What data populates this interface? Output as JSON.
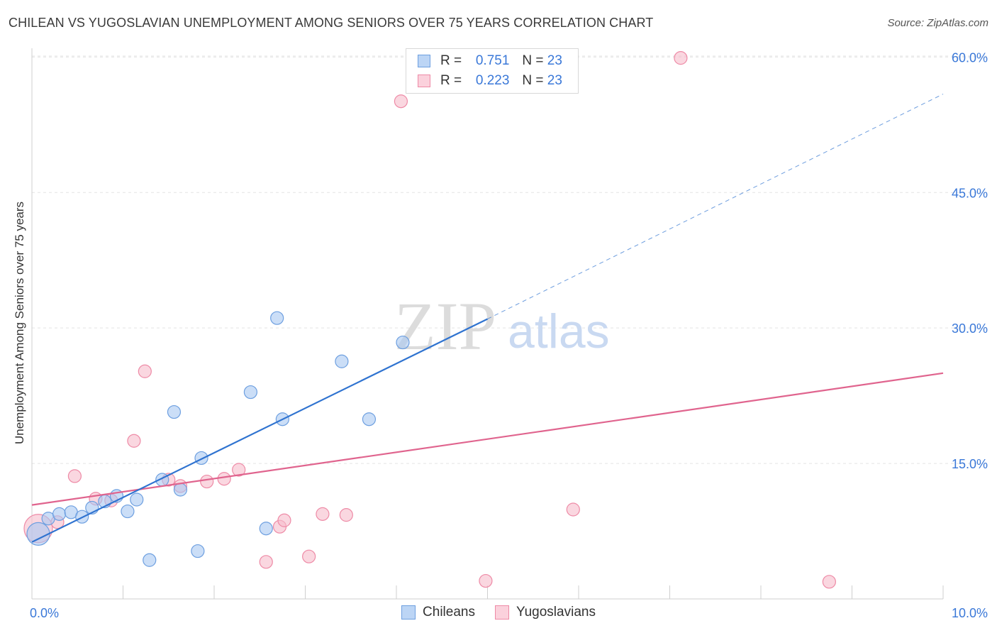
{
  "header": {
    "title": "CHILEAN VS YUGOSLAVIAN UNEMPLOYMENT AMONG SENIORS OVER 75 YEARS CORRELATION CHART",
    "source": "Source: ZipAtlas.com"
  },
  "watermark": {
    "zip": "ZIP",
    "atlas": "atlas"
  },
  "stats": [
    {
      "r_label": "R =",
      "r_value": "0.751",
      "n_label": "N =",
      "n_value": "23"
    },
    {
      "r_label": "R =",
      "r_value": "0.223",
      "n_label": "N =",
      "n_value": "23"
    }
  ],
  "legend": {
    "chileans": "Chileans",
    "yugoslavians": "Yugoslavians"
  },
  "colors": {
    "chileans_fill": "#a9c8f2",
    "chileans_stroke": "#6d9fe0",
    "chileans_line": "#2f73d0",
    "yugo_fill": "#f7bccb",
    "yugo_stroke": "#ee8aa6",
    "yugo_line": "#e0648e",
    "tick_label": "#3a78d8",
    "grid": "#e3e3e3"
  },
  "chart_data": {
    "type": "scatter",
    "title": "CHILEAN VS YUGOSLAVIAN UNEMPLOYMENT AMONG SENIORS OVER 75 YEARS CORRELATION CHART",
    "xlabel": "",
    "ylabel": "Unemployment Among Seniors over 75 years",
    "xlim": [
      0,
      10
    ],
    "ylim": [
      0,
      60.5
    ],
    "x_tick_labels": [
      "0.0%",
      "10.0%"
    ],
    "y_ticks": [
      15,
      30,
      45,
      60
    ],
    "y_tick_labels": [
      "15.0%",
      "30.0%",
      "45.0%",
      "60.0%"
    ],
    "series": [
      {
        "name": "Chileans",
        "r": 0.751,
        "n": 23,
        "points": [
          {
            "x": 0.07,
            "y": 7.2,
            "big": true
          },
          {
            "x": 0.18,
            "y": 8.9
          },
          {
            "x": 0.3,
            "y": 9.4
          },
          {
            "x": 0.43,
            "y": 9.6
          },
          {
            "x": 0.55,
            "y": 9.1
          },
          {
            "x": 0.66,
            "y": 10.1
          },
          {
            "x": 0.8,
            "y": 10.8
          },
          {
            "x": 0.93,
            "y": 11.4
          },
          {
            "x": 1.05,
            "y": 9.7
          },
          {
            "x": 1.15,
            "y": 11.0
          },
          {
            "x": 1.29,
            "y": 4.3
          },
          {
            "x": 1.43,
            "y": 13.2
          },
          {
            "x": 1.56,
            "y": 20.7
          },
          {
            "x": 1.63,
            "y": 12.1
          },
          {
            "x": 1.82,
            "y": 5.3
          },
          {
            "x": 1.86,
            "y": 15.6
          },
          {
            "x": 2.4,
            "y": 22.9
          },
          {
            "x": 2.57,
            "y": 7.8
          },
          {
            "x": 2.69,
            "y": 31.1
          },
          {
            "x": 2.75,
            "y": 19.9
          },
          {
            "x": 3.4,
            "y": 26.3
          },
          {
            "x": 3.7,
            "y": 19.9
          },
          {
            "x": 4.07,
            "y": 28.4
          }
        ],
        "trend": {
          "x0": 0.0,
          "y0": 6.3,
          "x1": 5.0,
          "y1": 31.0,
          "dash_x1": 10.0,
          "dash_y1": 55.9
        }
      },
      {
        "name": "Yugoslavians",
        "r": 0.223,
        "n": 23,
        "points": [
          {
            "x": 0.07,
            "y": 7.8,
            "big": true
          },
          {
            "x": 0.28,
            "y": 8.5
          },
          {
            "x": 0.47,
            "y": 13.6
          },
          {
            "x": 0.7,
            "y": 11.1
          },
          {
            "x": 0.87,
            "y": 10.9
          },
          {
            "x": 1.12,
            "y": 17.5
          },
          {
            "x": 1.24,
            "y": 25.2
          },
          {
            "x": 1.5,
            "y": 13.2
          },
          {
            "x": 1.63,
            "y": 12.5
          },
          {
            "x": 1.92,
            "y": 13.0
          },
          {
            "x": 2.11,
            "y": 13.3
          },
          {
            "x": 2.27,
            "y": 14.3
          },
          {
            "x": 2.57,
            "y": 4.1
          },
          {
            "x": 2.72,
            "y": 8.0
          },
          {
            "x": 2.77,
            "y": 8.7
          },
          {
            "x": 3.04,
            "y": 4.7
          },
          {
            "x": 3.19,
            "y": 9.4
          },
          {
            "x": 3.45,
            "y": 9.3
          },
          {
            "x": 4.05,
            "y": 55.1
          },
          {
            "x": 4.98,
            "y": 2.0
          },
          {
            "x": 5.94,
            "y": 9.9
          },
          {
            "x": 7.12,
            "y": 59.9
          },
          {
            "x": 8.75,
            "y": 1.9
          }
        ],
        "trend": {
          "x0": 0.0,
          "y0": 10.4,
          "x1": 10.0,
          "y1": 25.0
        }
      }
    ]
  }
}
